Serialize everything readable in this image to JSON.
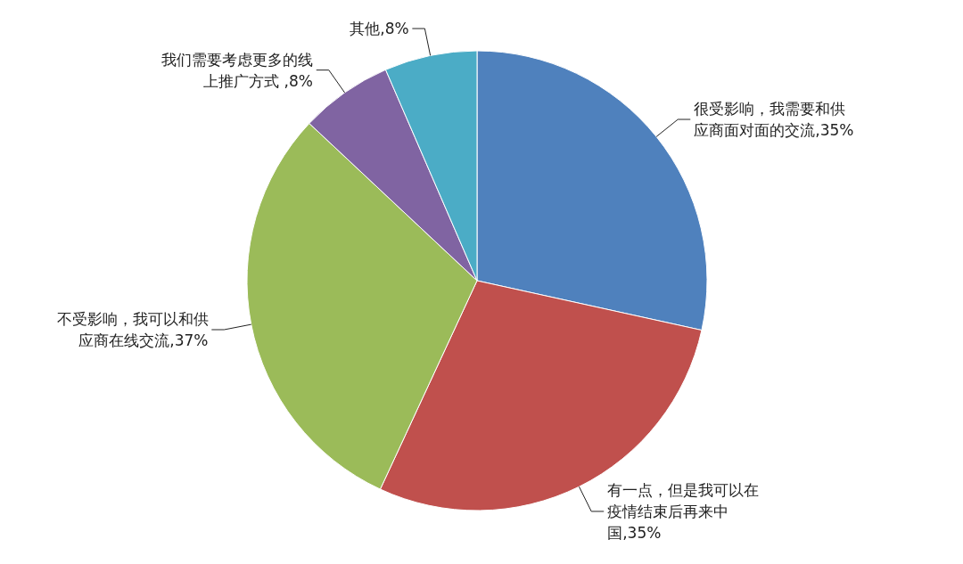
{
  "chart_data": {
    "type": "pie",
    "categories": [
      "很受影响，我需要和供应商面对面的交流",
      "有一点，但是我可以在疫情结束后再来中国",
      "不受影响，我可以和供应商在线交流",
      "我们需要考虑更多的线上推广方式 ",
      "其他"
    ],
    "values": [
      35,
      35,
      37,
      8,
      8
    ],
    "value_labels": [
      "35%",
      "35%",
      "37%",
      "8%",
      "8%"
    ],
    "colors": [
      "#4f81bd",
      "#c0504d",
      "#9bbb59",
      "#8064a2",
      "#4bacc6"
    ]
  }
}
